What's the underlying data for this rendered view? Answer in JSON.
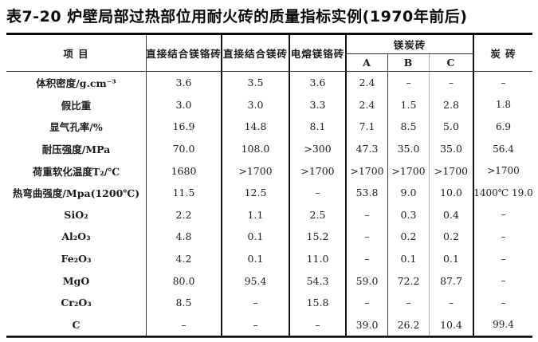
{
  "title": "表7-20 炉壁局部过热部位用耐火砖的质量指标实例(1970年前后)",
  "colors": {
    "background": "#ffffff",
    "text": "#1c1c1c",
    "heavy_rule": "#0a0a0a",
    "medium_rule": "#3a3a3a",
    "light_rule": "#b5b5b5"
  },
  "table": {
    "header": {
      "item": "项  目",
      "col1": "直接结合镁铬砖",
      "col2": "直接结合镁砖",
      "col3": "电熔镁铬砖",
      "group": "镁炭砖",
      "sub_a": "A",
      "sub_b": "B",
      "sub_c": "C",
      "col8": "炭 砖"
    },
    "rows": [
      {
        "label": "体积密度/g.cm⁻³",
        "values": [
          "3.6",
          "3.5",
          "3.6",
          "2.4",
          "–",
          "–",
          "–"
        ]
      },
      {
        "label": "假比重",
        "values": [
          "3.0",
          "3.0",
          "3.3",
          "2.4",
          "1.5",
          "2.8",
          "1.8"
        ]
      },
      {
        "label": "显气孔率/%",
        "values": [
          "16.9",
          "14.8",
          "8.1",
          "7.1",
          "8.5",
          "5.0",
          "6.9"
        ]
      },
      {
        "label": "耐压强度/MPa",
        "values": [
          "70.0",
          "108.0",
          ">300",
          "47.3",
          "35.0",
          "35.0",
          "56.4"
        ]
      },
      {
        "label": "荷重软化温度T₂/℃",
        "values": [
          "1680",
          ">1700",
          ">1700",
          ">1700",
          ">1700",
          ">1700",
          ">1700"
        ]
      },
      {
        "label": "热弯曲强度/Mpa(1200℃)",
        "values": [
          "11.5",
          "12.5",
          "–",
          "53.8",
          "9.0",
          "10.0",
          "1400℃ 19.0"
        ]
      },
      {
        "label": "SiO₂",
        "values": [
          "2.2",
          "1.1",
          "2.5",
          "–",
          "0.3",
          "0.4",
          "–"
        ]
      },
      {
        "label": "Al₂O₃",
        "values": [
          "4.8",
          "0.1",
          "15.2",
          "–",
          "0.2",
          "0.2",
          "–"
        ]
      },
      {
        "label": "Fe₂O₃",
        "values": [
          "4.2",
          "0.1",
          "11.0",
          "–",
          "0.1",
          "0.1",
          "–"
        ]
      },
      {
        "label": "MgO",
        "values": [
          "80.0",
          "95.4",
          "54.3",
          "59.0",
          "72.2",
          "87.7",
          "–"
        ]
      },
      {
        "label": "Cr₂O₃",
        "values": [
          "8.5",
          "–",
          "15.8",
          "–",
          "–",
          "–",
          "–"
        ]
      },
      {
        "label": "C",
        "values": [
          "–",
          "–",
          "–",
          "39.0",
          "26.2",
          "10.4",
          "99.4"
        ]
      }
    ]
  }
}
